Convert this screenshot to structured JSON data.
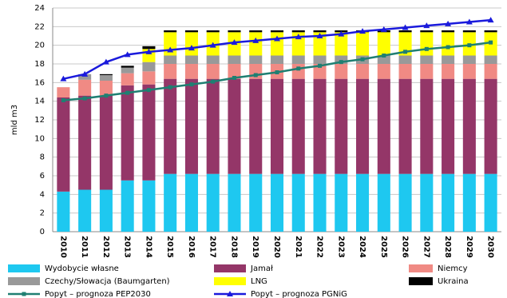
{
  "chart_data": {
    "type": "bar",
    "stacked": true,
    "ylabel": "mld m3",
    "categories": [
      "2010",
      "2011",
      "2012",
      "2013",
      "2014",
      "2015",
      "2016",
      "2017",
      "2018",
      "2019",
      "2020",
      "2021",
      "2022",
      "2023",
      "2024",
      "2025",
      "2026",
      "2027",
      "2028",
      "2029",
      "2030"
    ],
    "ylim": [
      0,
      24
    ],
    "yticks": [
      0,
      2,
      4,
      6,
      8,
      10,
      12,
      14,
      16,
      18,
      20,
      22,
      24
    ],
    "grid": true,
    "series": [
      {
        "name": "Wydobycie własne",
        "color": "#1ec8f0",
        "values": [
          4.3,
          4.5,
          4.5,
          5.5,
          5.5,
          6.2,
          6.2,
          6.2,
          6.2,
          6.2,
          6.2,
          6.2,
          6.2,
          6.2,
          6.2,
          6.2,
          6.2,
          6.2,
          6.2,
          6.2,
          6.2
        ]
      },
      {
        "name": "Jamał",
        "color": "#943668",
        "values": [
          10.1,
          10.1,
          10.1,
          10.2,
          10.3,
          10.2,
          10.2,
          10.2,
          10.2,
          10.2,
          10.2,
          10.2,
          10.2,
          10.2,
          10.2,
          10.2,
          10.2,
          10.2,
          10.2,
          10.2,
          10.2
        ]
      },
      {
        "name": "Niemcy",
        "color": "#f08a84",
        "values": [
          1.1,
          1.7,
          1.6,
          1.3,
          1.4,
          1.6,
          1.6,
          1.6,
          1.6,
          1.6,
          1.6,
          1.6,
          1.6,
          1.6,
          1.6,
          1.6,
          1.6,
          1.6,
          1.6,
          1.6,
          1.6
        ]
      },
      {
        "name": "Czechy/Słowacja (Baumgarten)",
        "color": "#999999",
        "values": [
          0,
          0.6,
          0.6,
          0.6,
          1.0,
          0.9,
          0.9,
          0.9,
          0.9,
          0.9,
          0.9,
          0.9,
          0.9,
          0.9,
          0.9,
          0.9,
          0.9,
          0.9,
          0.9,
          0.9,
          0.9
        ]
      },
      {
        "name": "LNG",
        "color": "#ffff00",
        "values": [
          0,
          0,
          0,
          0,
          1.4,
          2.5,
          2.5,
          2.5,
          2.5,
          2.5,
          2.5,
          2.5,
          2.5,
          2.5,
          2.5,
          2.5,
          2.5,
          2.5,
          2.5,
          2.5,
          2.5
        ]
      },
      {
        "name": "Ukraina",
        "color": "#000000",
        "values": [
          0,
          0,
          0.1,
          0.2,
          0.3,
          0.2,
          0.2,
          0.2,
          0.2,
          0.2,
          0.2,
          0.2,
          0.2,
          0.2,
          0.2,
          0.2,
          0.2,
          0.2,
          0.2,
          0.2,
          0.2
        ]
      },
      {
        "name": "Popyt – prognoza PEP2030",
        "color": "#1f7f72",
        "type": "line",
        "marker": "square",
        "values": [
          14.1,
          14.3,
          14.6,
          14.9,
          15.2,
          15.5,
          15.8,
          16.1,
          16.5,
          16.8,
          17.1,
          17.5,
          17.8,
          18.2,
          18.5,
          18.9,
          19.3,
          19.6,
          19.8,
          20.0,
          20.3
        ]
      },
      {
        "name": "Popyt – prognoza PGNiG",
        "color": "#1a1adc",
        "type": "line",
        "marker": "triangle",
        "values": [
          16.4,
          16.9,
          18.2,
          19.0,
          19.3,
          19.5,
          19.7,
          20.0,
          20.3,
          20.5,
          20.7,
          20.9,
          21.0,
          21.2,
          21.5,
          21.7,
          21.9,
          22.1,
          22.3,
          22.5,
          22.7
        ]
      }
    ]
  }
}
